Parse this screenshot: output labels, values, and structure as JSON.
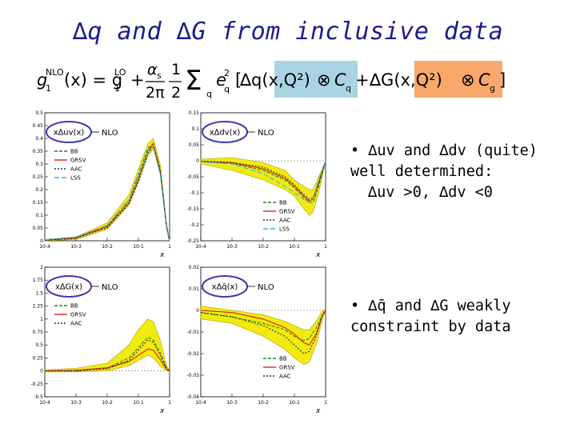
{
  "slide": {
    "title": "∆q and ∆G from inclusive data"
  },
  "formula": {
    "lhs": "g1NLO(x) = g1LO + (αs/2π)(1/2) Σq eq² [∆q(x,Q²) ⊗ Cq + ∆G(x,Q²) ⊗ Cg]",
    "quark_term": "∆q(x,Q²)",
    "gluon_term": "∆G(x,Q²)",
    "quark_highlight_color": "#aad4e4",
    "gluon_highlight_color": "#f7a86a"
  },
  "bullets": [
    {
      "lines": [
        "• ∆uv and ∆dv (quite)",
        "well determined:",
        "∆uv >0,  ∆dv <0"
      ]
    },
    {
      "lines": [
        "• ∆q̄ and ∆G weakly",
        "constraint by data"
      ]
    }
  ],
  "colors": {
    "band": "#f0ea10",
    "band_edge": "#a9a000",
    "bb": "#1a8a1a",
    "grsv": "#e0201a",
    "aac": "#2a2a2a",
    "lss": "#28b8e8",
    "circle": "#3a3ab0"
  },
  "chart_data": [
    {
      "type": "line",
      "panel": "top-left",
      "label": "x∆uv(x)",
      "tag": "NLO",
      "legend": [
        "BB",
        "GRSV",
        "AAC",
        "LSS"
      ],
      "xscale": "log",
      "xlim": [
        0.0001,
        1
      ],
      "ylim": [
        0,
        0.5
      ],
      "yticks": [
        "0.5",
        "0.45",
        "0.4",
        "0.35",
        "0.3",
        "0.25",
        "0.2",
        "0.15",
        "0.1",
        "0.05",
        "0"
      ],
      "xticks": [
        "10-4",
        "10-3",
        "10-2",
        "10-1",
        "1"
      ],
      "xlabel": "x",
      "series": [
        {
          "name": "BB",
          "x": [
            0.0001,
            0.001,
            0.01,
            0.05,
            0.1,
            0.2,
            0.3,
            0.5,
            0.8,
            1
          ],
          "y": [
            0.002,
            0.01,
            0.06,
            0.16,
            0.26,
            0.36,
            0.38,
            0.28,
            0.06,
            0.0
          ]
        },
        {
          "name": "GRSV",
          "x": [
            0.0001,
            0.001,
            0.01,
            0.05,
            0.1,
            0.2,
            0.3,
            0.5,
            0.8,
            1
          ],
          "y": [
            0.003,
            0.012,
            0.055,
            0.15,
            0.24,
            0.35,
            0.38,
            0.27,
            0.05,
            0.0
          ]
        },
        {
          "name": "AAC",
          "x": [
            0.0001,
            0.001,
            0.01,
            0.05,
            0.1,
            0.2,
            0.3,
            0.5,
            0.8,
            1
          ],
          "y": [
            0.002,
            0.01,
            0.05,
            0.145,
            0.23,
            0.34,
            0.37,
            0.27,
            0.05,
            0.0
          ]
        },
        {
          "name": "LSS",
          "x": [
            0.0001,
            0.001,
            0.01,
            0.05,
            0.1,
            0.2,
            0.3,
            0.5,
            0.8,
            1
          ],
          "y": [
            0.004,
            0.015,
            0.06,
            0.16,
            0.25,
            0.35,
            0.37,
            0.26,
            0.05,
            0.0
          ]
        }
      ],
      "band": {
        "x": [
          0.0001,
          0.001,
          0.01,
          0.05,
          0.1,
          0.2,
          0.3,
          0.5,
          0.8,
          1
        ],
        "lower": [
          0.0,
          0.005,
          0.045,
          0.14,
          0.23,
          0.33,
          0.36,
          0.26,
          0.05,
          0.0
        ],
        "upper": [
          0.005,
          0.015,
          0.07,
          0.18,
          0.28,
          0.38,
          0.4,
          0.3,
          0.07,
          0.0
        ]
      }
    },
    {
      "type": "line",
      "panel": "top-right",
      "label": "x∆dv(x)",
      "tag": "NLO",
      "legend": [
        "BB",
        "GRSV",
        "AAC",
        "LSS"
      ],
      "xscale": "log",
      "xlim": [
        0.0001,
        1
      ],
      "ylim": [
        -0.25,
        0.15
      ],
      "yticks": [
        "0.15",
        "0.1",
        "0.05",
        "0",
        "-0.05",
        "-0.1",
        "-0.15",
        "-0.2",
        "-0.25"
      ],
      "xticks": [
        "10-4",
        "10-3",
        "10-2",
        "10-1",
        "1"
      ],
      "xlabel": "x",
      "series": [
        {
          "name": "BB",
          "x": [
            0.0001,
            0.001,
            0.01,
            0.05,
            0.1,
            0.2,
            0.3,
            0.4,
            0.6,
            1
          ],
          "y": [
            -0.002,
            -0.008,
            -0.03,
            -0.06,
            -0.085,
            -0.115,
            -0.13,
            -0.13,
            -0.08,
            0.0
          ]
        },
        {
          "name": "GRSV",
          "x": [
            0.0001,
            0.001,
            0.01,
            0.05,
            0.1,
            0.2,
            0.3,
            0.4,
            0.6,
            1
          ],
          "y": [
            -0.002,
            -0.006,
            -0.025,
            -0.055,
            -0.08,
            -0.11,
            -0.125,
            -0.12,
            -0.07,
            0.0
          ]
        },
        {
          "name": "AAC",
          "x": [
            0.0001,
            0.001,
            0.01,
            0.05,
            0.1,
            0.2,
            0.3,
            0.4,
            0.6,
            1
          ],
          "y": [
            -0.001,
            -0.005,
            -0.02,
            -0.05,
            -0.075,
            -0.105,
            -0.12,
            -0.115,
            -0.07,
            0.0
          ]
        },
        {
          "name": "LSS",
          "x": [
            0.0001,
            0.001,
            0.01,
            0.05,
            0.1,
            0.2,
            0.3,
            0.4,
            0.6,
            1
          ],
          "y": [
            -0.003,
            -0.01,
            -0.04,
            -0.08,
            -0.1,
            -0.12,
            -0.13,
            -0.12,
            -0.06,
            0.0
          ]
        }
      ],
      "band": {
        "x": [
          0.0001,
          0.001,
          0.01,
          0.05,
          0.1,
          0.2,
          0.3,
          0.4,
          0.6,
          1
        ],
        "lower": [
          -0.01,
          -0.03,
          -0.06,
          -0.09,
          -0.11,
          -0.15,
          -0.17,
          -0.16,
          -0.1,
          0.0
        ],
        "upper": [
          0.005,
          0.01,
          -0.005,
          -0.03,
          -0.06,
          -0.08,
          -0.09,
          -0.09,
          -0.05,
          0.0
        ]
      }
    },
    {
      "type": "line",
      "panel": "bottom-left",
      "label": "x∆G(x)",
      "tag": "NLO",
      "legend": [
        "BB",
        "GRSV",
        "AAC"
      ],
      "xscale": "log",
      "xlim": [
        0.0001,
        1
      ],
      "ylim": [
        -0.5,
        2
      ],
      "yticks": [
        "2",
        "1.75",
        "1.5",
        "1.25",
        "1",
        "0.75",
        "0.5",
        "0.25",
        "0",
        "-0.25",
        "-0.5"
      ],
      "xticks": [
        "10-4",
        "10-3",
        "10-2",
        "10-1",
        "1"
      ],
      "xlabel": "x",
      "series": [
        {
          "name": "BB",
          "x": [
            0.0001,
            0.001,
            0.01,
            0.05,
            0.1,
            0.2,
            0.3,
            0.5,
            0.8,
            1
          ],
          "y": [
            0.0,
            0.0,
            0.05,
            0.25,
            0.45,
            0.65,
            0.6,
            0.35,
            0.05,
            0.0
          ]
        },
        {
          "name": "GRSV",
          "x": [
            0.0001,
            0.001,
            0.01,
            0.05,
            0.1,
            0.2,
            0.3,
            0.5,
            0.8,
            1
          ],
          "y": [
            0.0,
            0.01,
            0.06,
            0.18,
            0.3,
            0.42,
            0.4,
            0.22,
            0.03,
            0.0
          ]
        },
        {
          "name": "AAC",
          "x": [
            0.0001,
            0.001,
            0.01,
            0.05,
            0.1,
            0.2,
            0.3,
            0.5,
            0.8,
            1
          ],
          "y": [
            0.0,
            0.0,
            0.04,
            0.2,
            0.4,
            0.6,
            0.55,
            0.3,
            0.04,
            0.0
          ]
        }
      ],
      "band": {
        "x": [
          0.0001,
          0.001,
          0.01,
          0.05,
          0.1,
          0.2,
          0.3,
          0.5,
          0.8,
          1
        ],
        "lower": [
          -0.02,
          -0.02,
          0.0,
          0.1,
          0.2,
          0.3,
          0.25,
          0.1,
          0.0,
          0.0
        ],
        "upper": [
          0.02,
          0.05,
          0.15,
          0.5,
          0.8,
          1.0,
          0.95,
          0.6,
          0.1,
          0.0
        ]
      }
    },
    {
      "type": "line",
      "panel": "bottom-right",
      "label": "x∆q̄(x)",
      "tag": "NLO",
      "legend": [
        "BB",
        "GRSV",
        "AAC"
      ],
      "xscale": "log",
      "xlim": [
        0.0001,
        1
      ],
      "ylim": [
        -0.04,
        0.02
      ],
      "yticks": [
        "0.02",
        "0.01",
        "0",
        "-0.01",
        "-0.02",
        "-0.03",
        "-0.04"
      ],
      "xticks": [
        "10-4",
        "10-3",
        "10-2",
        "10-1",
        "1"
      ],
      "xlabel": "x",
      "series": [
        {
          "name": "BB",
          "x": [
            0.0001,
            0.001,
            0.01,
            0.05,
            0.1,
            0.2,
            0.3,
            0.5,
            0.8,
            1
          ],
          "y": [
            -0.001,
            -0.003,
            -0.006,
            -0.009,
            -0.012,
            -0.014,
            -0.013,
            -0.008,
            -0.002,
            0.0
          ]
        },
        {
          "name": "GRSV",
          "x": [
            0.0001,
            0.001,
            0.01,
            0.05,
            0.1,
            0.2,
            0.3,
            0.5,
            0.8,
            1
          ],
          "y": [
            0.0,
            -0.001,
            -0.004,
            -0.008,
            -0.011,
            -0.015,
            -0.016,
            -0.011,
            -0.002,
            0.0
          ]
        },
        {
          "name": "AAC",
          "x": [
            0.0001,
            0.001,
            0.01,
            0.05,
            0.1,
            0.2,
            0.3,
            0.5,
            0.8,
            1
          ],
          "y": [
            -0.001,
            -0.003,
            -0.007,
            -0.012,
            -0.016,
            -0.02,
            -0.019,
            -0.012,
            -0.002,
            0.0
          ]
        }
      ],
      "band": {
        "x": [
          0.0001,
          0.001,
          0.01,
          0.05,
          0.1,
          0.2,
          0.3,
          0.5,
          0.8,
          1
        ],
        "lower": [
          -0.004,
          -0.006,
          -0.012,
          -0.018,
          -0.022,
          -0.025,
          -0.024,
          -0.016,
          -0.004,
          0.0
        ],
        "upper": [
          0.002,
          0.0,
          -0.002,
          -0.005,
          -0.007,
          -0.009,
          -0.009,
          -0.005,
          0.0,
          0.0
        ]
      }
    }
  ]
}
